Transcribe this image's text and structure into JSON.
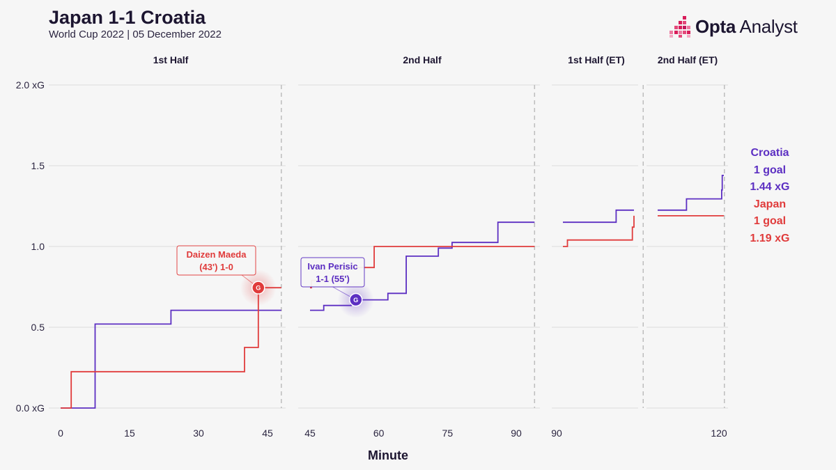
{
  "header": {
    "title": "Japan 1-1 Croatia",
    "subtitle": "World Cup 2022 | 05 December 2022"
  },
  "logo": {
    "brand": "Opta",
    "product": "Analyst"
  },
  "colors": {
    "croatia": "#5c2fc2",
    "japan": "#e03b3b",
    "grid": "#dcdcdc",
    "text": "#1c1530"
  },
  "summary": {
    "teams": [
      {
        "name": "Croatia",
        "goals": "1 goal",
        "xg": "1.44 xG"
      },
      {
        "name": "Japan",
        "goals": "1 goal",
        "xg": "1.19 xG"
      }
    ]
  },
  "chart_data": {
    "type": "line",
    "step": true,
    "xlabel": "Minute",
    "ylabel": "",
    "ylim": [
      0,
      2
    ],
    "yticks": [
      {
        "value": 0,
        "label": "0.0 xG"
      },
      {
        "value": 0.5,
        "label": "0.5"
      },
      {
        "value": 1.0,
        "label": "1.0"
      },
      {
        "value": 1.5,
        "label": "1.5"
      },
      {
        "value": 2.0,
        "label": "2.0 xG"
      }
    ],
    "grid": true,
    "periods": [
      {
        "label": "1st Half",
        "xmin": 0,
        "xmax": 48,
        "end_marker": 48,
        "ticks": [
          0,
          15,
          30,
          45
        ]
      },
      {
        "label": "2nd Half",
        "xmin": 45,
        "xmax": 94,
        "end_marker": 94,
        "ticks": [
          45,
          60,
          75,
          90
        ]
      },
      {
        "label": "1st Half (ET)",
        "xmin": 90,
        "xmax": 106,
        "end_marker": 106,
        "ticks": [
          90
        ]
      },
      {
        "label": "2nd Half (ET)",
        "xmin": 105,
        "xmax": 121,
        "end_marker": 121,
        "ticks": [
          120
        ]
      }
    ],
    "series": [
      {
        "name": "Croatia",
        "segments": [
          [
            [
              0,
              0
            ],
            [
              7.5,
              0
            ],
            [
              7.5,
              0.52
            ],
            [
              24,
              0.52
            ],
            [
              24,
              0.605
            ],
            [
              48,
              0.605
            ]
          ],
          [
            [
              45,
              0.605
            ],
            [
              48,
              0.605
            ],
            [
              48,
              0.635
            ],
            [
              54,
              0.635
            ],
            [
              54,
              0.67
            ],
            [
              62,
              0.67
            ],
            [
              62,
              0.71
            ],
            [
              66,
              0.71
            ],
            [
              66,
              0.94
            ],
            [
              73,
              0.94
            ],
            [
              73,
              0.99
            ],
            [
              76,
              0.99
            ],
            [
              76,
              1.025
            ],
            [
              86,
              1.025
            ],
            [
              86,
              1.15
            ],
            [
              94,
              1.15
            ]
          ],
          [
            [
              90,
              1.15
            ],
            [
              101,
              1.15
            ],
            [
              101,
              1.225
            ],
            [
              106,
              1.225
            ]
          ],
          [
            [
              105,
              1.225
            ],
            [
              114,
              1.225
            ],
            [
              114,
              1.295
            ],
            [
              120.5,
              1.295
            ],
            [
              120.5,
              1.35
            ],
            [
              120.6,
              1.35
            ],
            [
              120.6,
              1.44
            ],
            [
              121,
              1.44
            ]
          ]
        ]
      },
      {
        "name": "Japan",
        "segments": [
          [
            [
              0,
              0
            ],
            [
              2.3,
              0
            ],
            [
              2.3,
              0.225
            ],
            [
              40,
              0.225
            ],
            [
              40,
              0.375
            ],
            [
              43,
              0.375
            ],
            [
              43,
              0.745
            ],
            [
              48,
              0.745
            ]
          ],
          [
            [
              45,
              0.745
            ],
            [
              45.3,
              0.745
            ],
            [
              45.3,
              0.79
            ],
            [
              52,
              0.79
            ],
            [
              52,
              0.87
            ],
            [
              59,
              0.87
            ],
            [
              59,
              1.0
            ],
            [
              94,
              1.0
            ]
          ],
          [
            [
              90,
              1.0
            ],
            [
              92,
              1.0
            ],
            [
              92,
              1.04
            ],
            [
              104,
              1.04
            ],
            [
              104,
              1.12
            ],
            [
              104.5,
              1.12
            ],
            [
              104.5,
              1.19
            ],
            [
              106,
              1.19
            ]
          ],
          [
            [
              105,
              1.19
            ],
            [
              121,
              1.19
            ]
          ]
        ]
      }
    ],
    "annotations": [
      {
        "series": "Japan",
        "minute": 43,
        "y": 0.745,
        "marker": "G",
        "lines": [
          "Daizen Maeda",
          "(43') 1-0"
        ]
      },
      {
        "series": "Croatia",
        "minute": 55,
        "y": 0.67,
        "marker": "G",
        "lines": [
          "Ivan Perisic",
          "1-1 (55')"
        ]
      }
    ]
  }
}
